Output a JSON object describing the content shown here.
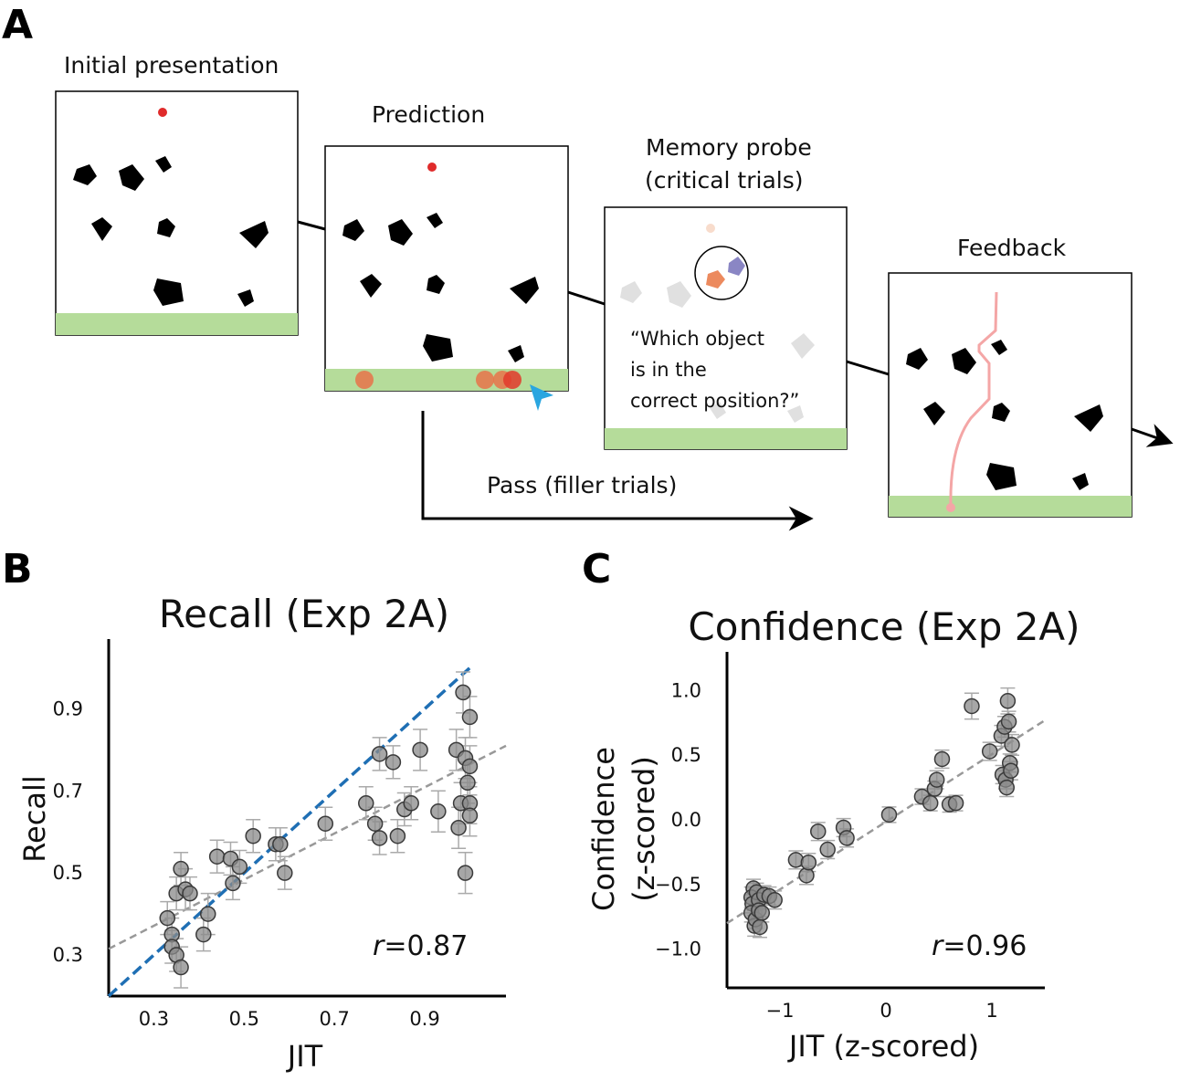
{
  "panel_a": {
    "letter": "A",
    "stages": [
      {
        "label": "Initial presentation"
      },
      {
        "label": "Prediction"
      },
      {
        "label_line1": "Memory probe",
        "label_line2": "(critical trials)"
      },
      {
        "label": "Feedback"
      }
    ],
    "probe_question": [
      "“Which object",
      "is in the",
      "correct position?”"
    ],
    "pass_label": "Pass (filler trials)",
    "colors": {
      "ball": "#e02b2b",
      "ground": "#b5dc9a",
      "prediction_marker": "#e8734a",
      "cursor": "#2aa6e0",
      "trajectory": "#f4a6a6",
      "probe_orange": "#ec8a5e",
      "probe_purple": "#8a86c4",
      "obstacle": "#000000",
      "ghost_obstacle": "#e0e0e0"
    }
  },
  "panel_b": {
    "letter": "B",
    "r_label": "r",
    "r_value": "=0.87"
  },
  "panel_c": {
    "letter": "C",
    "r_label": "r",
    "r_value": "=0.96"
  },
  "chart_data": [
    {
      "type": "scatter",
      "title": "Recall (Exp 2A)",
      "xlabel": "JIT",
      "ylabel": "Recall",
      "xticks": [
        "0.3",
        "0.5",
        "0.7",
        "0.9"
      ],
      "yticks": [
        "0.3",
        "0.5",
        "0.7",
        "0.9"
      ],
      "xlim": [
        0.2,
        1.08
      ],
      "ylim": [
        0.2,
        1.07
      ],
      "annotation": "r=0.87",
      "identity_line": {
        "color": "#1f6fb4",
        "from": [
          0.2,
          0.2
        ],
        "to": [
          1.0,
          1.0
        ]
      },
      "fit_line": {
        "color": "#999999",
        "from": [
          0.2,
          0.315
        ],
        "to": [
          1.08,
          0.81
        ]
      },
      "points": [
        {
          "x": 0.33,
          "y": 0.39,
          "err": 0.04
        },
        {
          "x": 0.34,
          "y": 0.35,
          "err": 0.04
        },
        {
          "x": 0.34,
          "y": 0.32,
          "err": 0.04
        },
        {
          "x": 0.35,
          "y": 0.45,
          "err": 0.04
        },
        {
          "x": 0.35,
          "y": 0.3,
          "err": 0.04
        },
        {
          "x": 0.36,
          "y": 0.27,
          "err": 0.05
        },
        {
          "x": 0.36,
          "y": 0.51,
          "err": 0.04
        },
        {
          "x": 0.37,
          "y": 0.46,
          "err": 0.05
        },
        {
          "x": 0.38,
          "y": 0.45,
          "err": 0.04
        },
        {
          "x": 0.41,
          "y": 0.35,
          "err": 0.04
        },
        {
          "x": 0.42,
          "y": 0.4,
          "err": 0.05
        },
        {
          "x": 0.44,
          "y": 0.54,
          "err": 0.04
        },
        {
          "x": 0.47,
          "y": 0.535,
          "err": 0.04
        },
        {
          "x": 0.475,
          "y": 0.475,
          "err": 0.04
        },
        {
          "x": 0.49,
          "y": 0.515,
          "err": 0.04
        },
        {
          "x": 0.52,
          "y": 0.59,
          "err": 0.04
        },
        {
          "x": 0.57,
          "y": 0.57,
          "err": 0.04
        },
        {
          "x": 0.58,
          "y": 0.57,
          "err": 0.04
        },
        {
          "x": 0.59,
          "y": 0.5,
          "err": 0.04
        },
        {
          "x": 0.68,
          "y": 0.62,
          "err": 0.04
        },
        {
          "x": 0.77,
          "y": 0.67,
          "err": 0.04
        },
        {
          "x": 0.79,
          "y": 0.62,
          "err": 0.04
        },
        {
          "x": 0.8,
          "y": 0.585,
          "err": 0.04
        },
        {
          "x": 0.8,
          "y": 0.79,
          "err": 0.04
        },
        {
          "x": 0.83,
          "y": 0.77,
          "err": 0.04
        },
        {
          "x": 0.84,
          "y": 0.59,
          "err": 0.04
        },
        {
          "x": 0.855,
          "y": 0.655,
          "err": 0.04
        },
        {
          "x": 0.87,
          "y": 0.67,
          "err": 0.04
        },
        {
          "x": 0.89,
          "y": 0.8,
          "err": 0.05
        },
        {
          "x": 0.93,
          "y": 0.65,
          "err": 0.05
        },
        {
          "x": 0.97,
          "y": 0.8,
          "err": 0.05
        },
        {
          "x": 0.975,
          "y": 0.61,
          "err": 0.05
        },
        {
          "x": 0.98,
          "y": 0.67,
          "err": 0.05
        },
        {
          "x": 0.985,
          "y": 0.94,
          "err": 0.05
        },
        {
          "x": 0.99,
          "y": 0.5,
          "err": 0.05
        },
        {
          "x": 0.99,
          "y": 0.78,
          "err": 0.05
        },
        {
          "x": 0.995,
          "y": 0.72,
          "err": 0.05
        },
        {
          "x": 1.0,
          "y": 0.88,
          "err": 0.05
        },
        {
          "x": 1.0,
          "y": 0.67,
          "err": 0.05
        },
        {
          "x": 1.0,
          "y": 0.64,
          "err": 0.05
        },
        {
          "x": 1.0,
          "y": 0.76,
          "err": 0.05
        }
      ]
    },
    {
      "type": "scatter",
      "title": "Confidence (Exp 2A)",
      "xlabel": "JIT (z-scored)",
      "ylabel_line1": "Confidence",
      "ylabel_line2": "(z-scored)",
      "xticks": [
        "−1",
        "0",
        "1"
      ],
      "yticks": [
        "−1.0",
        "−0.5",
        "0.0",
        "0.5",
        "1.0"
      ],
      "xlim": [
        -1.5,
        1.5
      ],
      "ylim": [
        -1.3,
        1.3
      ],
      "annotation": "r=0.96",
      "fit_line": {
        "color": "#999999",
        "from": [
          -1.5,
          -0.8
        ],
        "to": [
          1.5,
          0.77
        ]
      },
      "points": [
        {
          "x": -1.25,
          "y": -0.53,
          "err": 0.07
        },
        {
          "x": -1.27,
          "y": -0.6,
          "err": 0.08
        },
        {
          "x": -1.26,
          "y": -0.65,
          "err": 0.07
        },
        {
          "x": -1.27,
          "y": -0.72,
          "err": 0.07
        },
        {
          "x": -1.24,
          "y": -0.82,
          "err": 0.08
        },
        {
          "x": -1.23,
          "y": -0.77,
          "err": 0.07
        },
        {
          "x": -1.22,
          "y": -0.56,
          "err": 0.07
        },
        {
          "x": -1.2,
          "y": -0.62,
          "err": 0.07
        },
        {
          "x": -1.2,
          "y": -0.7,
          "err": 0.07
        },
        {
          "x": -1.19,
          "y": -0.83,
          "err": 0.08
        },
        {
          "x": -1.17,
          "y": -0.72,
          "err": 0.07
        },
        {
          "x": -1.15,
          "y": -0.58,
          "err": 0.07
        },
        {
          "x": -1.1,
          "y": -0.59,
          "err": 0.07
        },
        {
          "x": -1.05,
          "y": -0.62,
          "err": 0.07
        },
        {
          "x": -0.85,
          "y": -0.31,
          "err": 0.07
        },
        {
          "x": -0.75,
          "y": -0.43,
          "err": 0.07
        },
        {
          "x": -0.73,
          "y": -0.33,
          "err": 0.07
        },
        {
          "x": -0.64,
          "y": -0.09,
          "err": 0.07
        },
        {
          "x": -0.55,
          "y": -0.23,
          "err": 0.07
        },
        {
          "x": -0.4,
          "y": -0.06,
          "err": 0.07
        },
        {
          "x": -0.37,
          "y": -0.14,
          "err": 0.07
        },
        {
          "x": 0.03,
          "y": 0.04,
          "err": 0.06
        },
        {
          "x": 0.34,
          "y": 0.18,
          "err": 0.06
        },
        {
          "x": 0.42,
          "y": 0.13,
          "err": 0.06
        },
        {
          "x": 0.46,
          "y": 0.24,
          "err": 0.06
        },
        {
          "x": 0.48,
          "y": 0.31,
          "err": 0.07
        },
        {
          "x": 0.53,
          "y": 0.47,
          "err": 0.07
        },
        {
          "x": 0.6,
          "y": 0.12,
          "err": 0.06
        },
        {
          "x": 0.66,
          "y": 0.13,
          "err": 0.06
        },
        {
          "x": 0.81,
          "y": 0.88,
          "err": 0.1
        },
        {
          "x": 0.98,
          "y": 0.53,
          "err": 0.07
        },
        {
          "x": 1.09,
          "y": 0.65,
          "err": 0.08
        },
        {
          "x": 1.1,
          "y": 0.35,
          "err": 0.07
        },
        {
          "x": 1.12,
          "y": 0.72,
          "err": 0.08
        },
        {
          "x": 1.13,
          "y": 0.31,
          "err": 0.07
        },
        {
          "x": 1.14,
          "y": 0.25,
          "err": 0.07
        },
        {
          "x": 1.15,
          "y": 0.92,
          "err": 0.1
        },
        {
          "x": 1.16,
          "y": 0.76,
          "err": 0.08
        },
        {
          "x": 1.17,
          "y": 0.44,
          "err": 0.07
        },
        {
          "x": 1.18,
          "y": 0.38,
          "err": 0.07
        },
        {
          "x": 1.19,
          "y": 0.58,
          "err": 0.08
        }
      ]
    }
  ]
}
